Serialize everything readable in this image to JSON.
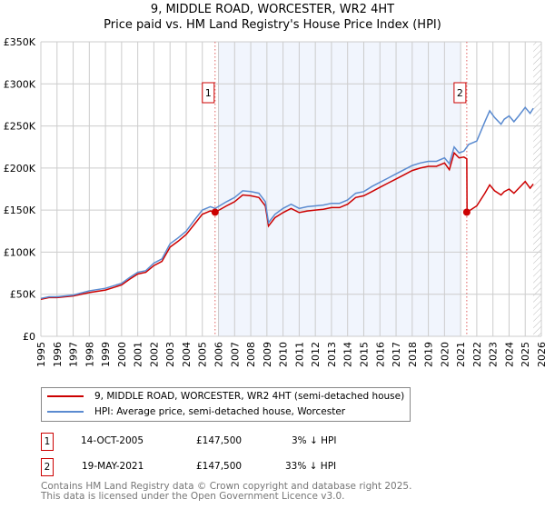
{
  "chart_data": {
    "type": "line",
    "title": "9, MIDDLE ROAD, WORCESTER, WR2 4HT",
    "subtitle": "Price paid vs. HM Land Registry's House Price Index (HPI)",
    "xlim": [
      1995,
      2026
    ],
    "ylim": [
      0,
      350000
    ],
    "yticks": [
      {
        "v": 0,
        "label": "£0"
      },
      {
        "v": 50000,
        "label": "£50K"
      },
      {
        "v": 100000,
        "label": "£100K"
      },
      {
        "v": 150000,
        "label": "£150K"
      },
      {
        "v": 200000,
        "label": "£200K"
      },
      {
        "v": 250000,
        "label": "£250K"
      },
      {
        "v": 300000,
        "label": "£300K"
      },
      {
        "v": 350000,
        "label": "£350K"
      }
    ],
    "xticks": [
      "1995",
      "1996",
      "1997",
      "1998",
      "1999",
      "2000",
      "2001",
      "2002",
      "2003",
      "2004",
      "2005",
      "2006",
      "2007",
      "2008",
      "2009",
      "2010",
      "2011",
      "2012",
      "2013",
      "2014",
      "2015",
      "2016",
      "2017",
      "2018",
      "2019",
      "2020",
      "2021",
      "2022",
      "2023",
      "2024",
      "2025",
      "2026"
    ],
    "grid": true,
    "shaded_range": [
      2006,
      2021
    ],
    "forecast_hatch_from": 2025.5,
    "series": [
      {
        "name": "HPI: Average price, semi-detached house, Worcester",
        "color": "#5b8bd0",
        "x": [
          1995,
          1995.5,
          1996,
          1997,
          1998,
          1999,
          2000,
          2000.5,
          2001,
          2001.5,
          2002,
          2002.5,
          2003,
          2003.5,
          2004,
          2004.5,
          2005,
          2005.5,
          2005.8,
          2006.5,
          2007,
          2007.5,
          2008,
          2008.5,
          2008.9,
          2009.1,
          2009.5,
          2010,
          2010.5,
          2011,
          2011.5,
          2012,
          2012.5,
          2013,
          2013.5,
          2014,
          2014.5,
          2015,
          2015.5,
          2016,
          2016.5,
          2017,
          2017.5,
          2018,
          2018.5,
          2019,
          2019.5,
          2020,
          2020.3,
          2020.6,
          2020.9,
          2021.2,
          2021.5,
          2022,
          2022.5,
          2022.8,
          2023.1,
          2023.5,
          2023.7,
          2024,
          2024.3,
          2024.6,
          2025,
          2025.3,
          2025.5
        ],
        "values": [
          45000,
          47000,
          47000,
          49000,
          54000,
          57000,
          63000,
          70000,
          76000,
          78000,
          87000,
          92000,
          110000,
          117000,
          125000,
          138000,
          150000,
          154000,
          152000,
          160000,
          165000,
          173000,
          172000,
          170000,
          160000,
          135000,
          145000,
          152000,
          157000,
          152000,
          154000,
          155000,
          156000,
          158000,
          158000,
          162000,
          170000,
          172000,
          178000,
          183000,
          188000,
          193000,
          198000,
          203000,
          206000,
          208000,
          208000,
          212000,
          205000,
          225000,
          218000,
          220000,
          228000,
          232000,
          255000,
          268000,
          260000,
          252000,
          258000,
          262000,
          255000,
          262000,
          272000,
          265000,
          271000
        ]
      },
      {
        "name": "9, MIDDLE ROAD, WORCESTER, WR2 4HT (semi-detached house)",
        "color": "#cc0000",
        "x": [
          1995,
          1995.5,
          1996,
          1997,
          1998,
          1999,
          2000,
          2000.5,
          2001,
          2001.5,
          2002,
          2002.5,
          2003,
          2003.5,
          2004,
          2004.5,
          2005,
          2005.5,
          2005.8,
          2006.5,
          2007,
          2007.5,
          2008,
          2008.5,
          2008.9,
          2009.1,
          2009.5,
          2010,
          2010.5,
          2011,
          2011.5,
          2012,
          2012.5,
          2013,
          2013.5,
          2014,
          2014.5,
          2015,
          2015.5,
          2016,
          2016.5,
          2017,
          2017.5,
          2018,
          2018.5,
          2019,
          2019.5,
          2020,
          2020.3,
          2020.6,
          2020.9,
          2021.2,
          2021.38,
          2021.4,
          2022,
          2022.5,
          2022.8,
          2023.1,
          2023.5,
          2023.7,
          2024,
          2024.3,
          2024.6,
          2025,
          2025.3,
          2025.5
        ],
        "values": [
          44000,
          46000,
          46000,
          48000,
          52000,
          55000,
          61000,
          68000,
          74000,
          76000,
          84000,
          89000,
          106000,
          113000,
          121000,
          133000,
          145000,
          149000,
          147500,
          155000,
          160000,
          168000,
          167000,
          165000,
          155000,
          131000,
          141000,
          147000,
          152000,
          147000,
          149000,
          150000,
          151000,
          153000,
          153000,
          157000,
          165000,
          167000,
          172000,
          177000,
          182000,
          187000,
          192000,
          197000,
          200000,
          202000,
          202000,
          206000,
          198000,
          218000,
          212000,
          213000,
          211000,
          147500,
          155000,
          170000,
          180000,
          173000,
          168000,
          172000,
          175000,
          170000,
          176000,
          184000,
          176000,
          181000
        ]
      }
    ],
    "sales": [
      {
        "id": "1",
        "x": 2005.79,
        "value": 147500
      },
      {
        "id": "2",
        "x": 2021.38,
        "value": 147500
      }
    ]
  },
  "header": {
    "title": "9, MIDDLE ROAD, WORCESTER, WR2 4HT",
    "subtitle": "Price paid vs. HM Land Registry's House Price Index (HPI)"
  },
  "legend": {
    "property": "9, MIDDLE ROAD, WORCESTER, WR2 4HT (semi-detached house)",
    "hpi": "HPI: Average price, semi-detached house, Worcester",
    "property_color": "#cc0000",
    "hpi_color": "#5b8bd0"
  },
  "sales_table": [
    {
      "id": "1",
      "date": "14-OCT-2005",
      "price": "£147,500",
      "hpi": "3% ↓ HPI"
    },
    {
      "id": "2",
      "date": "19-MAY-2021",
      "price": "£147,500",
      "hpi": "33% ↓ HPI"
    }
  ],
  "footer": {
    "line1": "Contains HM Land Registry data © Crown copyright and database right 2025.",
    "line2": "This data is licensed under the Open Government Licence v3.0."
  }
}
